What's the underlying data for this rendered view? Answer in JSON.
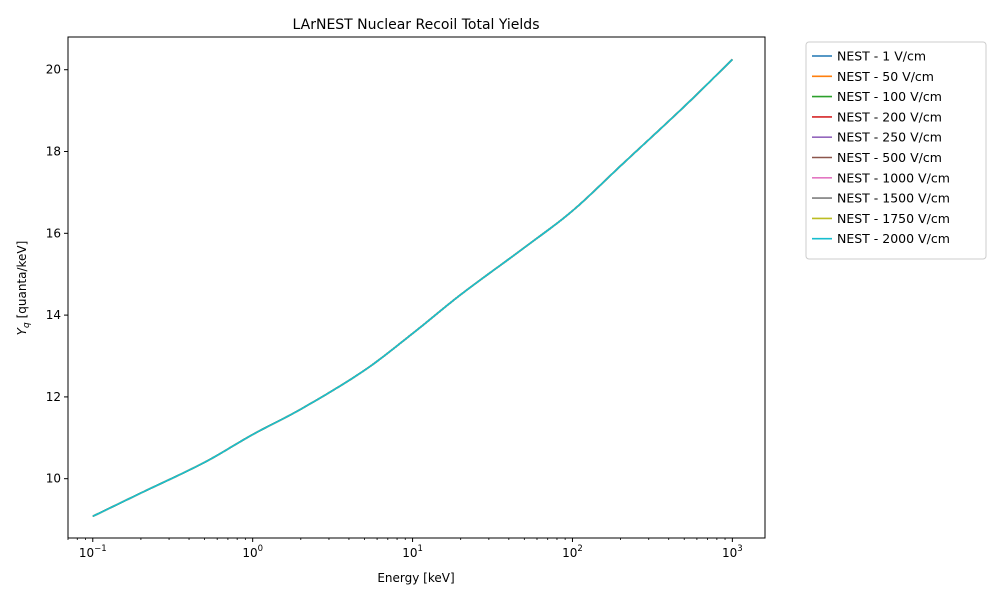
{
  "chart_data": {
    "type": "line",
    "title": "LArNEST Nuclear Recoil Total Yields",
    "xlabel": "Energy [keV]",
    "ylabel_main": "Y",
    "ylabel_sub": "q",
    "ylabel_units": " [quanta/keV]",
    "xscale": "log",
    "xlim": [
      0.07,
      1600
    ],
    "ylim": [
      8.55,
      20.8
    ],
    "x_ticks": [
      {
        "value": 0.1,
        "base": "10",
        "exp": "−1"
      },
      {
        "value": 1,
        "base": "10",
        "exp": "0"
      },
      {
        "value": 10,
        "base": "10",
        "exp": "1"
      },
      {
        "value": 100,
        "base": "10",
        "exp": "2"
      },
      {
        "value": 1000,
        "base": "10",
        "exp": "3"
      }
    ],
    "y_ticks": [
      "10",
      "12",
      "14",
      "16",
      "18",
      "20"
    ],
    "grid": false,
    "legend_position": "outside-right",
    "x": [
      0.1,
      0.2,
      0.5,
      1,
      2,
      5,
      10,
      20,
      50,
      100,
      200,
      500,
      1000
    ],
    "y_common": [
      9.08,
      9.65,
      10.4,
      11.08,
      11.7,
      12.65,
      13.55,
      14.5,
      15.65,
      16.55,
      17.65,
      19.1,
      20.25
    ],
    "series": [
      {
        "name": "NEST - 1 V/cm",
        "color": "#1f77b4"
      },
      {
        "name": "NEST - 50 V/cm",
        "color": "#ff7f0e"
      },
      {
        "name": "NEST - 100 V/cm",
        "color": "#2ca02c"
      },
      {
        "name": "NEST - 200 V/cm",
        "color": "#d62728"
      },
      {
        "name": "NEST - 250 V/cm",
        "color": "#9467bd"
      },
      {
        "name": "NEST - 500 V/cm",
        "color": "#8c564b"
      },
      {
        "name": "NEST - 1000 V/cm",
        "color": "#e377c2"
      },
      {
        "name": "NEST - 1500 V/cm",
        "color": "#7f7f7f"
      },
      {
        "name": "NEST - 1750 V/cm",
        "color": "#bcbd22"
      },
      {
        "name": "NEST - 2000 V/cm",
        "color": "#17becf"
      }
    ]
  }
}
